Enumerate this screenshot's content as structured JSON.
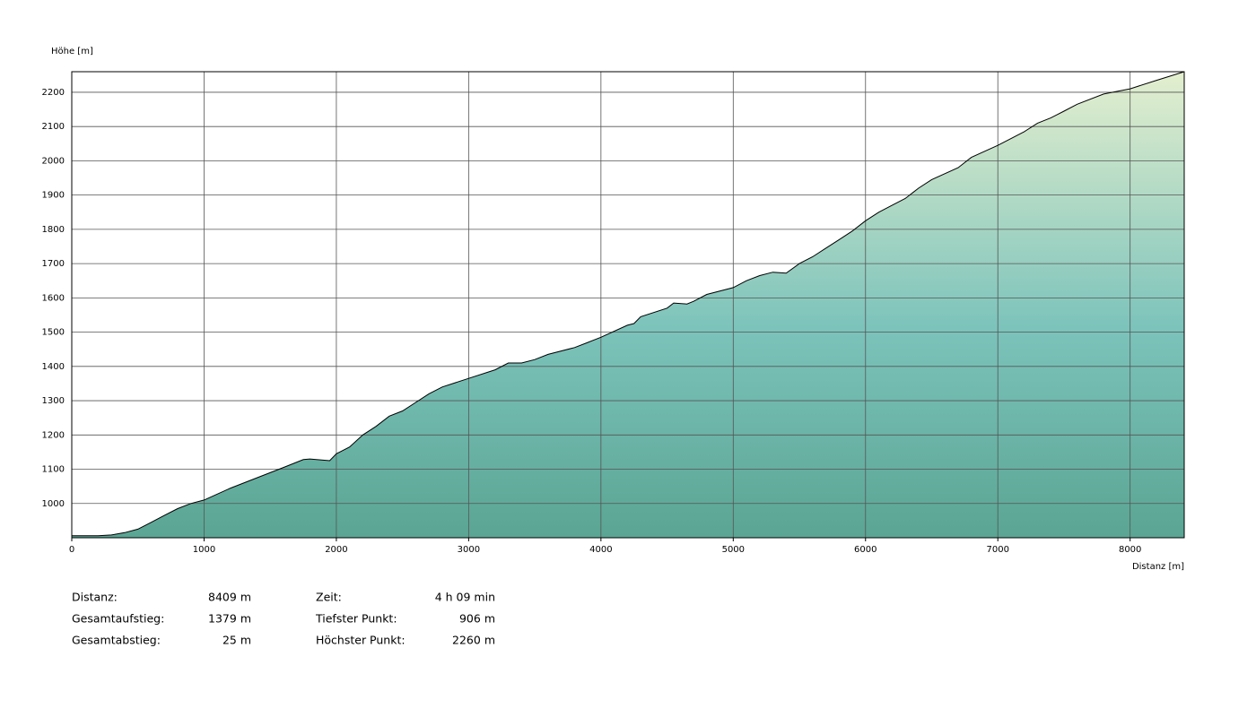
{
  "chart_data": {
    "type": "area",
    "y_label": "Höhe [m]",
    "x_label": "Distanz [m]",
    "x": [
      0,
      200,
      300,
      400,
      500,
      600,
      700,
      800,
      900,
      1000,
      1200,
      1400,
      1600,
      1750,
      1800,
      1950,
      2000,
      2100,
      2200,
      2300,
      2400,
      2500,
      2600,
      2700,
      2800,
      3000,
      3200,
      3300,
      3400,
      3500,
      3600,
      3800,
      3900,
      4000,
      4200,
      4250,
      4300,
      4500,
      4550,
      4650,
      4700,
      4800,
      5000,
      5100,
      5200,
      5300,
      5400,
      5500,
      5600,
      5700,
      5800,
      5900,
      6000,
      6100,
      6200,
      6300,
      6400,
      6500,
      6700,
      6800,
      7000,
      7200,
      7300,
      7400,
      7500,
      7600,
      7800,
      8000,
      8200,
      8409
    ],
    "values": [
      906,
      906,
      908,
      915,
      925,
      945,
      965,
      985,
      1000,
      1010,
      1045,
      1075,
      1105,
      1128,
      1130,
      1125,
      1145,
      1165,
      1200,
      1225,
      1255,
      1270,
      1295,
      1320,
      1340,
      1365,
      1390,
      1410,
      1410,
      1420,
      1435,
      1455,
      1470,
      1485,
      1520,
      1525,
      1545,
      1570,
      1585,
      1582,
      1590,
      1610,
      1630,
      1650,
      1665,
      1675,
      1672,
      1700,
      1720,
      1745,
      1770,
      1795,
      1825,
      1850,
      1870,
      1890,
      1920,
      1945,
      1980,
      2010,
      2045,
      2085,
      2110,
      2125,
      2145,
      2165,
      2195,
      2210,
      2235,
      2260
    ],
    "colors": [
      "#e4efcf",
      "#7cc3bb",
      "#5aa593"
    ],
    "line_color": "#000000",
    "xlim": [
      0,
      8409
    ],
    "ylim": [
      900,
      2260
    ],
    "xticks": [
      0,
      1000,
      2000,
      3000,
      4000,
      5000,
      6000,
      7000,
      8000
    ],
    "yticks": [
      1000,
      1100,
      1200,
      1300,
      1400,
      1500,
      1600,
      1700,
      1800,
      1900,
      2000,
      2100,
      2200
    ],
    "grid": true
  },
  "stats": [
    [
      {
        "label": "Distanz:",
        "value": "8409 m"
      },
      {
        "label": "Zeit:",
        "value": "4 h 09 min"
      }
    ],
    [
      {
        "label": "Gesamtaufstieg:",
        "value": "1379 m"
      },
      {
        "label": "Tiefster Punkt:",
        "value": "906 m"
      }
    ],
    [
      {
        "label": "Gesamtabstieg:",
        "value": "25 m"
      },
      {
        "label": "Höchster Punkt:",
        "value": "2260 m"
      }
    ]
  ]
}
